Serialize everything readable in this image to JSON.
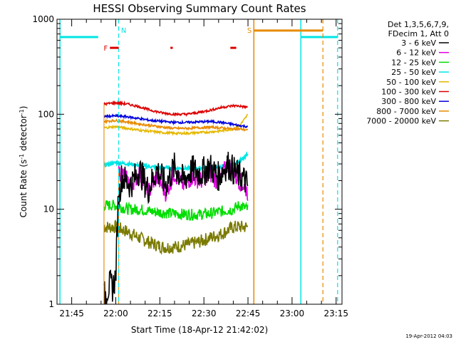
{
  "footer_date": "19-Apr-2012 04:03",
  "chart_data": {
    "type": "line",
    "title": "HESSI Observing Summary Count Rates",
    "xlabel": "Start Time (18-Apr-12 21:42:02)",
    "ylabel_parts": [
      "Count Rate (s",
      "-1",
      " detector",
      "-1",
      ")"
    ],
    "y_scale": "log",
    "ylim": [
      1,
      1000
    ],
    "y_ticks": [
      1,
      10,
      100,
      1000
    ],
    "y_tick_labels": [
      "1",
      "10",
      "100",
      "1000"
    ],
    "x_unit": "minutes after 21:42:02",
    "xlim": [
      -2,
      95
    ],
    "x_ticks": [
      3,
      18,
      33,
      48,
      63,
      78,
      93
    ],
    "x_tick_labels": [
      "21:45",
      "22:00",
      "22:15",
      "22:30",
      "22:45",
      "23:00",
      "23:15"
    ],
    "legend": {
      "placement": "right",
      "header": [
        "Det 1,3,5,6,7,9,",
        "FDecim 1, Att 0"
      ],
      "entries": [
        {
          "label": "3 - 6 keV",
          "color": "#000000"
        },
        {
          "label": "6 - 12 keV",
          "color": "#e000e0"
        },
        {
          "label": "12 - 25 keV",
          "color": "#00dd00"
        },
        {
          "label": "25 - 50 keV",
          "color": "#00e5e5"
        },
        {
          "label": "50 - 100 keV",
          "color": "#e5b800"
        },
        {
          "label": "100 - 300 keV",
          "color": "#dd0000"
        },
        {
          "label": "300 - 800 keV",
          "color": "#0000dd"
        },
        {
          "label": "800 - 7000 keV",
          "color": "#e88a00"
        },
        {
          "label": "7000 - 20000 keV",
          "color": "#7a7a00"
        }
      ]
    },
    "series": [
      {
        "name": "3 - 6 keV",
        "color": "#000000",
        "x": [
          14,
          15,
          16,
          17,
          18,
          18.8,
          20,
          23,
          26,
          29,
          32,
          35,
          38,
          41,
          44,
          47,
          50,
          53,
          56,
          59,
          62,
          63
        ],
        "y": [
          1.2,
          1.4,
          1.6,
          1.5,
          2.0,
          12,
          22,
          18,
          26,
          16,
          26,
          18,
          28,
          20,
          26,
          24,
          28,
          22,
          30,
          24,
          20,
          17
        ]
      },
      {
        "name": "6 - 12 keV",
        "color": "#e000e0",
        "x": [
          19,
          20,
          23,
          26,
          29,
          32,
          35,
          38,
          41,
          44,
          47,
          50,
          53,
          56,
          59,
          62,
          63
        ],
        "y": [
          25,
          24,
          18,
          24,
          15,
          22,
          15,
          24,
          18,
          22,
          20,
          24,
          19,
          30,
          22,
          17,
          15
        ]
      },
      {
        "name": "12 - 25 keV",
        "color": "#00dd00",
        "x": [
          14,
          18,
          22,
          26,
          30,
          34,
          38,
          42,
          46,
          50,
          54,
          58,
          60,
          63
        ],
        "y": [
          11,
          11,
          10,
          10,
          9.5,
          9.2,
          9,
          8.8,
          8.8,
          9,
          9.5,
          10,
          11,
          10
        ]
      },
      {
        "name": "25 - 50 keV",
        "color": "#00e5e5",
        "x": [
          14,
          18,
          22,
          26,
          30,
          34,
          38,
          42,
          46,
          50,
          54,
          58,
          60,
          62,
          63
        ],
        "y": [
          29,
          31,
          30,
          29,
          28,
          27.5,
          27,
          27,
          27,
          27.5,
          28,
          30,
          32,
          35,
          40
        ]
      },
      {
        "name": "50 - 100 keV",
        "color": "#e5b800",
        "x": [
          14,
          18,
          22,
          26,
          30,
          34,
          38,
          42,
          46,
          50,
          54,
          58,
          60,
          62,
          63
        ],
        "y": [
          72,
          74,
          71,
          68,
          66,
          64,
          63,
          63,
          64,
          65,
          67,
          70,
          75,
          90,
          100
        ]
      },
      {
        "name": "100 - 300 keV",
        "color": "#dd0000",
        "x": [
          14,
          18,
          22,
          26,
          30,
          34,
          38,
          42,
          46,
          50,
          54,
          58,
          60,
          63
        ],
        "y": [
          128,
          132,
          128,
          120,
          110,
          103,
          100,
          100,
          104,
          110,
          118,
          123,
          122,
          118
        ]
      },
      {
        "name": "300 - 800 keV",
        "color": "#0000dd",
        "x": [
          14,
          18,
          22,
          26,
          30,
          34,
          38,
          42,
          46,
          50,
          54,
          58,
          60,
          63
        ],
        "y": [
          95,
          96,
          94,
          90,
          86,
          84,
          82,
          82,
          83,
          84,
          82,
          78,
          76,
          74
        ]
      },
      {
        "name": "800 - 7000 keV",
        "color": "#e88a00",
        "x": [
          14,
          18,
          22,
          26,
          30,
          34,
          38,
          42,
          46,
          50,
          54,
          58,
          60,
          63
        ],
        "y": [
          84,
          86,
          83,
          79,
          76,
          73,
          71,
          71,
          72,
          73,
          72,
          70,
          70,
          68
        ]
      },
      {
        "name": "7000 - 20000 keV",
        "color": "#7a7a00",
        "x": [
          14,
          18,
          22,
          26,
          30,
          34,
          38,
          42,
          46,
          50,
          54,
          58,
          60,
          63
        ],
        "y": [
          6.5,
          6.5,
          5.8,
          5.0,
          4.4,
          4.0,
          4.0,
          4.2,
          4.5,
          5.0,
          5.5,
          6.5,
          6.5,
          6.5
        ]
      }
    ],
    "annotations": {
      "night_markers": {
        "color": "#00e5e5",
        "solid_x": [
          -1,
          81
        ],
        "dashed_x": [
          19,
          93.5
        ],
        "segments": [
          {
            "x": [
              -1,
              12
            ],
            "y": 650
          },
          {
            "x": [
              81,
              93.5
            ],
            "y": 650
          }
        ]
      },
      "saa": {
        "color": "#e88a00",
        "label": "S",
        "solid_x": [
          65
        ],
        "dashed_x": [
          88.5
        ],
        "segment": {
          "x": [
            65,
            88.5
          ],
          "y": 760
        }
      },
      "flags": [
        {
          "label": "F",
          "color": "#dd0000",
          "x": [
            16,
            19
          ],
          "y": 500
        },
        {
          "label": "",
          "color": "#dd0000",
          "x": [
            36.6,
            37.4
          ],
          "y": 500
        },
        {
          "label": "",
          "color": "#dd0000",
          "x": [
            57,
            59
          ],
          "y": 500
        }
      ],
      "night_label": {
        "text": "N",
        "x": 19.8,
        "y": 770
      }
    }
  }
}
